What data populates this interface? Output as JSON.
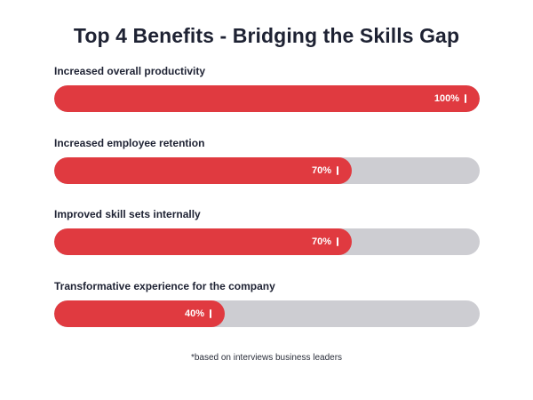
{
  "chart_data": {
    "type": "bar",
    "title": "Top 4 Benefits - Bridging the Skills Gap",
    "categories": [
      "Increased overall productivity",
      "Increased employee retention",
      "Improved skill sets internally",
      "Transformative experience for the company"
    ],
    "values": [
      100,
      70,
      70,
      40
    ],
    "value_labels": [
      "100%",
      "70%",
      "70%",
      "40%"
    ],
    "unit": "%",
    "xlim": [
      0,
      100
    ],
    "orientation": "horizontal",
    "grid": false,
    "footnote": "*based on interviews business leaders"
  },
  "colors": {
    "bar_fill": "#e03a40",
    "track": "#cdcdd2",
    "text": "#1e2233"
  }
}
